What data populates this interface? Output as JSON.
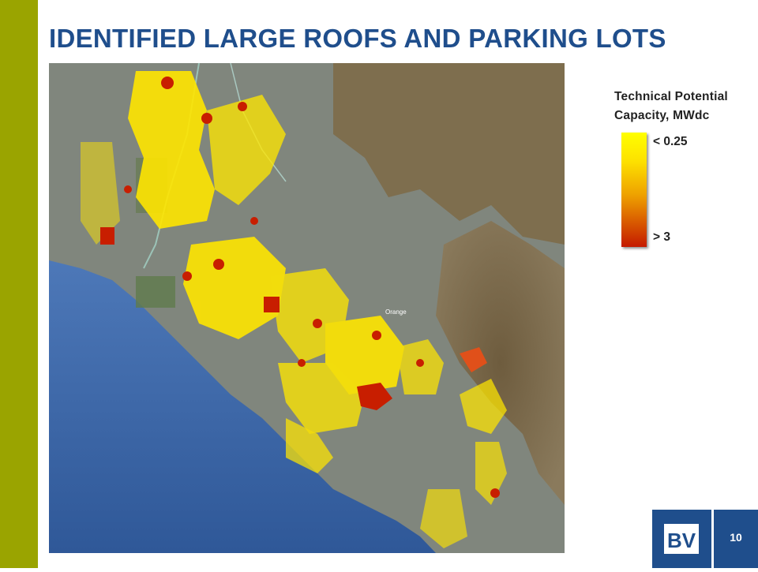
{
  "slide": {
    "title": "IDENTIFIED LARGE ROOFS AND PARKING LOTS",
    "page_number": "10"
  },
  "legend": {
    "title": "Technical Potential Capacity, MWdc",
    "low_label": "< 0.25",
    "high_label": "> 3",
    "colors": [
      "#ffff00",
      "#eea000",
      "#c41a00"
    ]
  },
  "map": {
    "place_label": "Orange",
    "colors": {
      "ocean": "#3f66a8",
      "land": "#7d837a",
      "hills": "#7a6a4a",
      "low_capacity": "#ffe600",
      "high_capacity": "#c81e00"
    }
  },
  "logo": {
    "icon": "bv-logo-icon"
  }
}
